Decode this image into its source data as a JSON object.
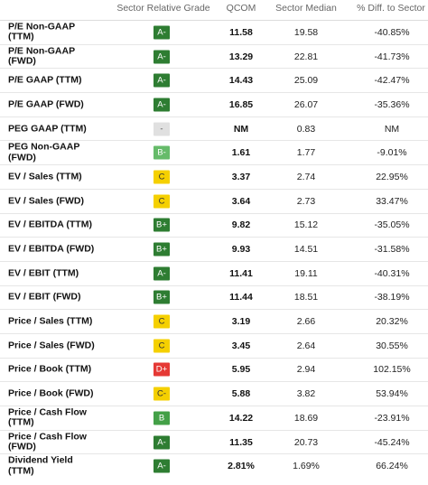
{
  "headers": {
    "grade": "Sector Relative Grade",
    "qcom": "QCOM",
    "median": "Sector Median",
    "diff": "% Diff. to Sector"
  },
  "grade_colors": {
    "A-": {
      "bg": "#2e7d32",
      "fg": "#ffffff"
    },
    "B+": {
      "bg": "#2e7d32",
      "fg": "#ffffff"
    },
    "B": {
      "bg": "#43a047",
      "fg": "#ffffff"
    },
    "B-": {
      "bg": "#66bb6a",
      "fg": "#ffffff"
    },
    "C": {
      "bg": "#f5d000",
      "fg": "#333333"
    },
    "C-": {
      "bg": "#f5d000",
      "fg": "#333333"
    },
    "D+": {
      "bg": "#e53935",
      "fg": "#ffffff"
    },
    "-": {
      "bg": "#e0e0e0",
      "fg": "#555555"
    }
  },
  "rows": [
    {
      "metric": "P/E Non-GAAP\n(TTM)",
      "grade": "A-",
      "qcom": "11.58",
      "median": "19.58",
      "diff": "-40.85%"
    },
    {
      "metric": "P/E Non-GAAP\n(FWD)",
      "grade": "A-",
      "qcom": "13.29",
      "median": "22.81",
      "diff": "-41.73%"
    },
    {
      "metric": "P/E GAAP (TTM)",
      "grade": "A-",
      "qcom": "14.43",
      "median": "25.09",
      "diff": "-42.47%"
    },
    {
      "metric": "P/E GAAP (FWD)",
      "grade": "A-",
      "qcom": "16.85",
      "median": "26.07",
      "diff": "-35.36%"
    },
    {
      "metric": "PEG GAAP (TTM)",
      "grade": "-",
      "qcom": "NM",
      "median": "0.83",
      "diff": "NM"
    },
    {
      "metric": "PEG Non-GAAP\n(FWD)",
      "grade": "B-",
      "qcom": "1.61",
      "median": "1.77",
      "diff": "-9.01%"
    },
    {
      "metric": "EV / Sales (TTM)",
      "grade": "C",
      "qcom": "3.37",
      "median": "2.74",
      "diff": "22.95%"
    },
    {
      "metric": "EV / Sales (FWD)",
      "grade": "C",
      "qcom": "3.64",
      "median": "2.73",
      "diff": "33.47%"
    },
    {
      "metric": "EV / EBITDA (TTM)",
      "grade": "B+",
      "qcom": "9.82",
      "median": "15.12",
      "diff": "-35.05%"
    },
    {
      "metric": "EV / EBITDA (FWD)",
      "grade": "B+",
      "qcom": "9.93",
      "median": "14.51",
      "diff": "-31.58%"
    },
    {
      "metric": "EV / EBIT (TTM)",
      "grade": "A-",
      "qcom": "11.41",
      "median": "19.11",
      "diff": "-40.31%"
    },
    {
      "metric": "EV / EBIT (FWD)",
      "grade": "B+",
      "qcom": "11.44",
      "median": "18.51",
      "diff": "-38.19%"
    },
    {
      "metric": "Price / Sales (TTM)",
      "grade": "C",
      "qcom": "3.19",
      "median": "2.66",
      "diff": "20.32%"
    },
    {
      "metric": "Price / Sales (FWD)",
      "grade": "C",
      "qcom": "3.45",
      "median": "2.64",
      "diff": "30.55%"
    },
    {
      "metric": "Price / Book (TTM)",
      "grade": "D+",
      "qcom": "5.95",
      "median": "2.94",
      "diff": "102.15%"
    },
    {
      "metric": "Price / Book (FWD)",
      "grade": "C-",
      "qcom": "5.88",
      "median": "3.82",
      "diff": "53.94%"
    },
    {
      "metric": "Price / Cash Flow\n(TTM)",
      "grade": "B",
      "qcom": "14.22",
      "median": "18.69",
      "diff": "-23.91%"
    },
    {
      "metric": "Price / Cash Flow\n(FWD)",
      "grade": "A-",
      "qcom": "11.35",
      "median": "20.73",
      "diff": "-45.24%"
    },
    {
      "metric": "Dividend Yield\n(TTM)",
      "grade": "A-",
      "qcom": "2.81%",
      "median": "1.69%",
      "diff": "66.24%"
    }
  ]
}
